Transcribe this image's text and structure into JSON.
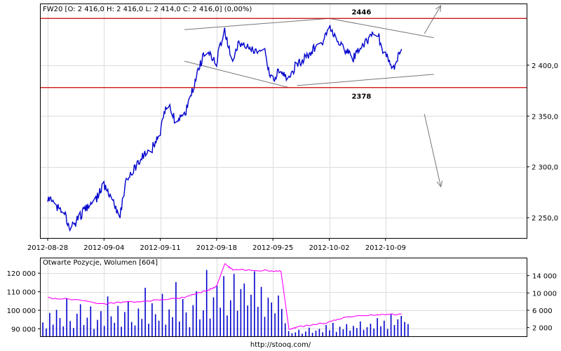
{
  "source_url": "http://stooq.com/",
  "chart_data": [
    {
      "type": "line",
      "legend": "FW20 [O: 2 416,0  H: 2 416,0  L: 2 414,0  C: 2 416,0] (0,00%)",
      "x_ticks": [
        "2012-08-28",
        "2012-09-04",
        "2012-09-11",
        "2012-09-18",
        "2012-09-25",
        "2012-10-02",
        "2012-10-09"
      ],
      "y_ticks": [
        {
          "value": 2250,
          "label": "2 250,0"
        },
        {
          "value": 2300,
          "label": "2 300,0"
        },
        {
          "value": 2350,
          "label": "2 350,0"
        },
        {
          "value": 2400,
          "label": "2 400,0"
        }
      ],
      "ylim": [
        2230,
        2460
      ],
      "grid": true,
      "series": [
        {
          "color": "#0000cc",
          "points": [
            [
              "2012-08-28",
              2270
            ],
            [
              "2012-08-29",
              2262
            ],
            [
              "2012-08-30",
              2255
            ],
            [
              "2012-08-31",
              2240
            ],
            [
              "2012-09-03",
              2268
            ],
            [
              "2012-09-04",
              2282
            ],
            [
              "2012-09-05",
              2268
            ],
            [
              "2012-09-06",
              2252
            ],
            [
              "2012-09-07",
              2290
            ],
            [
              "2012-09-10",
              2318
            ],
            [
              "2012-09-11",
              2335
            ],
            [
              "2012-09-12",
              2362
            ],
            [
              "2012-09-13",
              2345
            ],
            [
              "2012-09-14",
              2350
            ],
            [
              "2012-09-17",
              2415
            ],
            [
              "2012-09-18",
              2403
            ],
            [
              "2012-09-19",
              2433
            ],
            [
              "2012-09-20",
              2408
            ],
            [
              "2012-09-21",
              2422
            ],
            [
              "2012-09-24",
              2412
            ],
            [
              "2012-09-25",
              2385
            ],
            [
              "2012-09-26",
              2395
            ],
            [
              "2012-09-27",
              2387
            ],
            [
              "2012-09-28",
              2400
            ],
            [
              "2012-10-01",
              2420
            ],
            [
              "2012-10-02",
              2438
            ],
            [
              "2012-10-03",
              2425
            ],
            [
              "2012-10-04",
              2415
            ],
            [
              "2012-10-05",
              2407
            ],
            [
              "2012-10-08",
              2432
            ],
            [
              "2012-10-09",
              2410
            ],
            [
              "2012-10-10",
              2397
            ],
            [
              "2012-10-11",
              2416
            ]
          ]
        }
      ],
      "annotations": [
        {
          "text": "2446",
          "y": 2446,
          "color": "#cc0000"
        },
        {
          "text": "2378",
          "y": 2378,
          "color": "#cc0000"
        }
      ]
    },
    {
      "type": "bar",
      "legend": "Otwarte Pozycje, Wolumen [604]",
      "left_axis": {
        "ticks": [
          {
            "value": 90000,
            "label": "90 000"
          },
          {
            "value": 100000,
            "label": "100 000"
          },
          {
            "value": 110000,
            "label": "110 000"
          },
          {
            "value": 120000,
            "label": "120 000"
          }
        ],
        "ylim": [
          86000,
          128000
        ]
      },
      "right_axis": {
        "ticks": [
          {
            "value": 2000,
            "label": "2 000"
          },
          {
            "value": 6000,
            "label": "6 000"
          },
          {
            "value": 10000,
            "label": "10 000"
          },
          {
            "value": 14000,
            "label": "14 000"
          }
        ],
        "ylim": [
          0,
          18000
        ]
      },
      "series": [
        {
          "name": "Otwarte Pozycje",
          "type": "line",
          "color": "#ff00ff",
          "axis": "left",
          "points": [
            [
              "2012-08-28",
              106500
            ],
            [
              "2012-08-31",
              106000
            ],
            [
              "2012-09-04",
              103500
            ],
            [
              "2012-09-07",
              104500
            ],
            [
              "2012-09-11",
              105500
            ],
            [
              "2012-09-14",
              107000
            ],
            [
              "2012-09-17",
              111000
            ],
            [
              "2012-09-18",
              113000
            ],
            [
              "2012-09-19",
              125000
            ],
            [
              "2012-09-20",
              122000
            ],
            [
              "2012-09-24",
              121500
            ],
            [
              "2012-09-26",
              121000
            ],
            [
              "2012-09-27",
              89500
            ],
            [
              "2012-09-28",
              91000
            ],
            [
              "2012-10-02",
              93500
            ],
            [
              "2012-10-04",
              96500
            ],
            [
              "2012-10-08",
              97500
            ],
            [
              "2012-10-11",
              98000
            ]
          ]
        },
        {
          "name": "Wolumen",
          "type": "bar",
          "color": "#0000cc",
          "axis": "right",
          "values": [
            3200,
            1800,
            5400,
            2700,
            6100,
            4200,
            2300,
            8800,
            3500,
            1900,
            5200,
            7400,
            2600,
            4300,
            6900,
            1700,
            3800,
            5800,
            2400,
            9200,
            4600,
            3100,
            7000,
            2200,
            5600,
            8100,
            3300,
            2500,
            6400,
            4000,
            11200,
            2900,
            7600,
            5100,
            3600,
            9800,
            2700,
            6200,
            4400,
            12500,
            3400,
            8600,
            5500,
            2100,
            7200,
            10400,
            3900,
            6000,
            15300,
            4100,
            9000,
            11800,
            6600,
            13900,
            4800,
            8300,
            14400,
            5900,
            10900,
            12200,
            7100,
            9600,
            15000,
            6800,
            11400,
            4500,
            8900,
            7800,
            5300,
            9400,
            6300,
            3000,
            1200,
            700,
            900,
            1500,
            600,
            1100,
            2000,
            800,
            1300,
            1700,
            900,
            2600,
            1400,
            3100,
            1000,
            2200,
            1600,
            2800,
            1300,
            2400,
            1900,
            3400,
            1500,
            2100,
            2900,
            1800,
            4200,
            2300,
            3600,
            1700,
            5200,
            2600,
            3900,
            4700,
            3300,
            2800
          ]
        }
      ]
    }
  ]
}
